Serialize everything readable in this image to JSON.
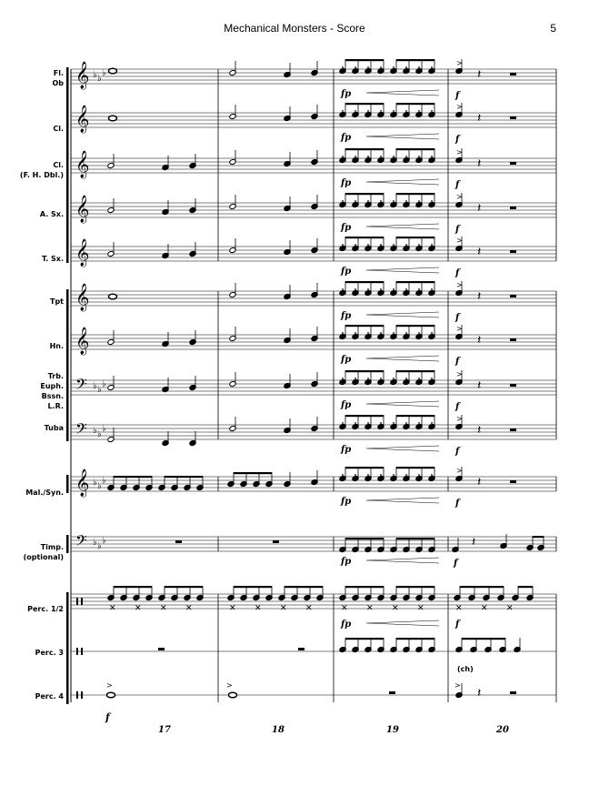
{
  "header": {
    "title": "Mechanical Monsters - Score",
    "page": "5"
  },
  "instruments": [
    {
      "id": "fl-ob",
      "label": "Fl.\nOb"
    },
    {
      "id": "cl1",
      "label": "Cl."
    },
    {
      "id": "cl2",
      "label": "Cl.\n(F. H. Dbl.)"
    },
    {
      "id": "asx",
      "label": "A. Sx."
    },
    {
      "id": "tsx",
      "label": "T. Sx."
    },
    {
      "id": "tpt",
      "label": "Tpt"
    },
    {
      "id": "hn",
      "label": "Hn."
    },
    {
      "id": "trb",
      "label": "Trb.\nEuph.\nBssn.\nL.R."
    },
    {
      "id": "tuba",
      "label": "Tuba"
    },
    {
      "id": "mal",
      "label": "Mal./Syn."
    },
    {
      "id": "timp",
      "label": "Timp.\n(optional)"
    },
    {
      "id": "perc12",
      "label": "Perc. 1/2"
    },
    {
      "id": "perc3",
      "label": "Perc. 3"
    },
    {
      "id": "perc4",
      "label": "Perc. 4"
    }
  ],
  "measure_numbers": [
    "17",
    "18",
    "19",
    "20"
  ],
  "dynamics": {
    "fp": "fp",
    "f": "f"
  },
  "annotations": {
    "chimes": "(ch)"
  }
}
